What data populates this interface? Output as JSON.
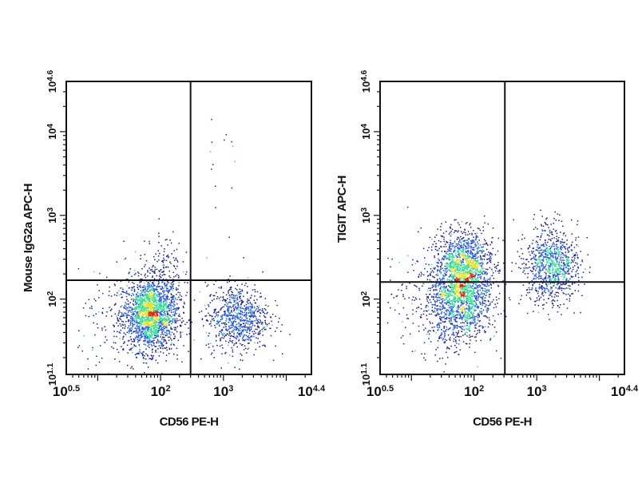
{
  "chart_data": [
    {
      "type": "scatter",
      "subtype": "flow-cytometry-density-dot-plot",
      "xlabel": "CD56 PE-H",
      "ylabel": "Mouse IgG2a APC-H",
      "xscale": "log",
      "yscale": "log",
      "xlim": [
        3.16,
        25119
      ],
      "ylim": [
        12.6,
        39811
      ],
      "xticks": [
        {
          "base": "10",
          "exp": "0.5",
          "value": 3.16
        },
        {
          "base": "10",
          "exp": "2",
          "value": 100
        },
        {
          "base": "10",
          "exp": "3",
          "value": 1000
        },
        {
          "base": "10",
          "exp": "4.4",
          "value": 25119
        }
      ],
      "yticks": [
        {
          "base": "10",
          "exp": "1.1",
          "value": 12.6
        },
        {
          "base": "10",
          "exp": "2",
          "value": 100
        },
        {
          "base": "10",
          "exp": "3",
          "value": 1000
        },
        {
          "base": "10",
          "exp": "4",
          "value": 10000
        },
        {
          "base": "10",
          "exp": "4.6",
          "value": 39811
        }
      ],
      "quadrant_gate": {
        "x": 300,
        "y": 168
      },
      "populations": [
        {
          "center_x": 70,
          "center_y": 65,
          "spread_decades_x": 0.22,
          "spread_decades_y": 0.22,
          "events": 1700
        },
        {
          "center_x": 1700,
          "center_y": 60,
          "spread_decades_x": 0.25,
          "spread_decades_y": 0.2,
          "events": 800
        },
        {
          "center_x": 110,
          "center_y": 220,
          "spread_decades_x": 0.15,
          "spread_decades_y": 0.25,
          "events": 150
        },
        {
          "center_x": 40,
          "center_y": 50,
          "spread_decades_x": 0.45,
          "spread_decades_y": 0.3,
          "events": 250
        },
        {
          "center_x": 900,
          "center_y": 2500,
          "spread_decades_x": 0.2,
          "spread_decades_y": 0.45,
          "events": 14
        }
      ]
    },
    {
      "type": "scatter",
      "subtype": "flow-cytometry-density-dot-plot",
      "xlabel": "CD56 PE-H",
      "ylabel": "TIGIT APC-H",
      "xscale": "log",
      "yscale": "log",
      "xlim": [
        3.16,
        25119
      ],
      "ylim": [
        12.6,
        39811
      ],
      "xticks": [
        {
          "base": "10",
          "exp": "0.5",
          "value": 3.16
        },
        {
          "base": "10",
          "exp": "2",
          "value": 100
        },
        {
          "base": "10",
          "exp": "3",
          "value": 1000
        },
        {
          "base": "10",
          "exp": "4.4",
          "value": 25119
        }
      ],
      "yticks": [
        {
          "base": "10",
          "exp": "1.1",
          "value": 12.6
        },
        {
          "base": "10",
          "exp": "2",
          "value": 100
        },
        {
          "base": "10",
          "exp": "3",
          "value": 1000
        },
        {
          "base": "10",
          "exp": "4",
          "value": 10000
        },
        {
          "base": "10",
          "exp": "4.6",
          "value": 39811
        }
      ],
      "quadrant_gate": {
        "x": 310,
        "y": 160
      },
      "populations": [
        {
          "center_x": 60,
          "center_y": 100,
          "spread_decades_x": 0.25,
          "spread_decades_y": 0.25,
          "events": 1300
        },
        {
          "center_x": 75,
          "center_y": 280,
          "spread_decades_x": 0.22,
          "spread_decades_y": 0.2,
          "events": 900
        },
        {
          "center_x": 1700,
          "center_y": 250,
          "spread_decades_x": 0.22,
          "spread_decades_y": 0.22,
          "events": 900
        },
        {
          "center_x": 30,
          "center_y": 100,
          "spread_decades_x": 0.4,
          "spread_decades_y": 0.35,
          "events": 300
        }
      ]
    }
  ],
  "colors": {
    "density_low": "#1a1aa0",
    "density_mid1": "#1f4fff",
    "density_mid2": "#2fe08f",
    "density_mid3": "#e8e020",
    "density_high": "#e82010",
    "axis": "#111111"
  }
}
